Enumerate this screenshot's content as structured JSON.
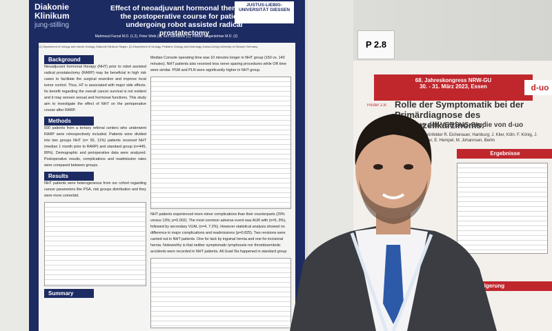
{
  "left_poster": {
    "logo": "Diakonie Klinikum",
    "logo_sub": "jung-stilling",
    "title": "Effect of neoadjuvant hormonal therapy on the postoperative course for patients undergoing robot assisted radical prostatectomy",
    "university": "JUSTUS-LIEBIG-UNIVERSITÄT GIESSEN",
    "authors": "Mahmoud Farzat M.D. (1,2), Peter Weib (1), Iurii Sukhanov (1), Florian Wagenlehner M.D. (2)",
    "affiliations": "(1) Department of urology and robotic Urology, Diakonie Klinikum Siegen, (2) Department of Urology, Pediatric Urology and Andrology Justus-Liebig University of Giessen Germany",
    "sections": [
      {
        "heading": "Background",
        "text": "Neoadjuvant hormonal therapy (NHT) prior to robot assisted radical prostatectomy (RARP) may be beneficial in high risk cases to facilitate the surgical resection and improve local tumor control. Thus, HT is associated with major side effects. Its benefit regarding the overall cancer survival is not evident and it may worsen sexual and hormonal functions. This study aim to investigate the effect of NHT on the perioperative course after RARP."
      },
      {
        "heading": "Methods",
        "text": "500 patients from a tertiary referral centers who underwent RARP were retrospectively included. Patients were divided into two groups NHT (n= 55, 11%) patients received NHT (median 1 month prior to RARP) and standard group (n=445, 89%). Demographic and perioperative data were analyzed. Postoperative results, complications and readmission rates were compared between groups."
      },
      {
        "heading": "Results",
        "text": "NHT patients were heterogeneous from our cohort regarding cancer parameters like PSA, risk groups distribution and they were more comorbid."
      },
      {
        "heading": "Summary"
      }
    ],
    "column2_text": "Median Console operating time was 10 minutes longer in NHT group (150 vs. 140 minutes). NHT patients also received less nerve sparing procedures while OR time were similar. PSM and PLN were significantly higher in NHT group.",
    "column2_text_2": "NHT patients experienced more minor complications than their counterparts (29% versus 13%; p=0.002). The most common adverse event was AUR with (n=5, 9%), followed by secondary VUAL (n=4, 7.2%). However statistical analysis showed no difference in major complications and readmissions (p=0.825). Two revisions were carried out in NHT patients. One for lack by inguinal hernia and one for incisional hernia. Noteworthy is that neither symptomatic lymphocele nor thromboembolic accidents were recorded in NHT patients. All Grad IIIa happened in standard group"
  },
  "right_poster": {
    "board_number": "P 2.8",
    "congress": "68. Jahreskongress NRW-GU",
    "dates": "30. - 31. März 2023, Essen",
    "poster_label": "Poster 2.8:",
    "title": "Rolle der Symptomatik bei der Primärdiagnose des Nierenzellkarzinoms:",
    "subtitle": "…ten aus der VERSUS-Studie von d-uo",
    "authors": "R. Schönfelder R. Eichenauer, Hamburg; J. Klier, Köln; F. König, J. Schröder, E. Hempel, M. Johannsen, Berlin",
    "sections": [
      "Ergebnisse",
      "Folgerung"
    ],
    "logo": "d-uo"
  }
}
